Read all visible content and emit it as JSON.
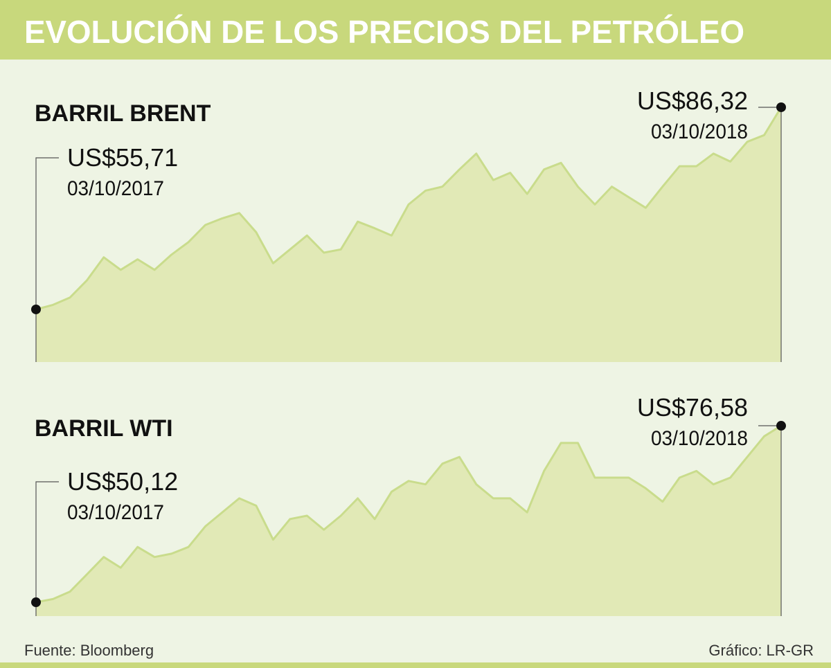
{
  "title": "EVOLUCIÓN DE LOS PRECIOS DEL PETRÓLEO",
  "source": "Fuente: Bloomberg",
  "credit": "Gráfico: LR-GR",
  "chart_data": [
    {
      "type": "area",
      "title": "BARRIL BRENT",
      "color": "#c9dc8c",
      "fill": "#e1e9b6",
      "ylim": [
        47.74,
        87.89
      ],
      "categories": [
        "03/10/2017",
        null,
        null,
        null,
        null,
        null,
        null,
        null,
        null,
        null,
        null,
        null,
        null,
        null,
        null,
        null,
        null,
        null,
        null,
        null,
        null,
        null,
        null,
        null,
        null,
        null,
        null,
        null,
        null,
        null,
        null,
        null,
        null,
        null,
        null,
        null,
        null,
        null,
        null,
        null,
        null,
        null,
        null,
        null,
        "03/10/2018"
      ],
      "values": [
        55.71,
        56.4,
        57.5,
        60.1,
        63.6,
        61.7,
        63.3,
        61.7,
        64.0,
        65.9,
        68.5,
        69.5,
        70.3,
        67.4,
        62.7,
        64.8,
        66.9,
        64.3,
        64.8,
        69.0,
        68.0,
        66.9,
        71.6,
        73.7,
        74.3,
        76.9,
        79.3,
        75.3,
        76.4,
        73.2,
        76.9,
        77.9,
        74.3,
        71.6,
        74.3,
        72.7,
        71.1,
        74.3,
        77.4,
        77.4,
        79.3,
        78.1,
        81.1,
        82.1,
        86.32
      ],
      "value_labels": [
        "US$55,71",
        null,
        null,
        null,
        null,
        null,
        null,
        null,
        null,
        null,
        null,
        null,
        null,
        null,
        null,
        null,
        null,
        null,
        null,
        null,
        null,
        null,
        null,
        null,
        null,
        null,
        null,
        null,
        null,
        null,
        null,
        null,
        null,
        null,
        null,
        null,
        null,
        null,
        null,
        null,
        null,
        null,
        null,
        null,
        "US$86,32"
      ]
    },
    {
      "type": "area",
      "title": "BARRIL WTI",
      "color": "#c9dc8c",
      "fill": "#e1e9b6",
      "ylim": [
        48.05,
        78.14
      ],
      "categories": [
        "03/10/2017",
        null,
        null,
        null,
        null,
        null,
        null,
        null,
        null,
        null,
        null,
        null,
        null,
        null,
        null,
        null,
        null,
        null,
        null,
        null,
        null,
        null,
        null,
        null,
        null,
        null,
        null,
        null,
        null,
        null,
        null,
        null,
        null,
        null,
        null,
        null,
        null,
        null,
        null,
        null,
        null,
        null,
        null,
        null,
        "03/10/2018"
      ],
      "values": [
        50.12,
        50.6,
        51.7,
        54.3,
        56.9,
        55.3,
        58.4,
        56.9,
        57.4,
        58.4,
        61.5,
        63.6,
        65.7,
        64.6,
        59.5,
        62.6,
        63.1,
        61.0,
        63.1,
        65.7,
        62.6,
        66.7,
        68.3,
        67.8,
        70.9,
        71.9,
        67.8,
        65.7,
        65.7,
        63.6,
        69.8,
        74.0,
        74.0,
        68.8,
        68.8,
        68.8,
        67.2,
        65.2,
        68.8,
        69.8,
        67.8,
        68.8,
        71.9,
        75.0,
        76.58
      ],
      "value_labels": [
        "US$50,12",
        null,
        null,
        null,
        null,
        null,
        null,
        null,
        null,
        null,
        null,
        null,
        null,
        null,
        null,
        null,
        null,
        null,
        null,
        null,
        null,
        null,
        null,
        null,
        null,
        null,
        null,
        null,
        null,
        null,
        null,
        null,
        null,
        null,
        null,
        null,
        null,
        null,
        null,
        null,
        null,
        null,
        null,
        null,
        "US$76,58"
      ]
    }
  ]
}
